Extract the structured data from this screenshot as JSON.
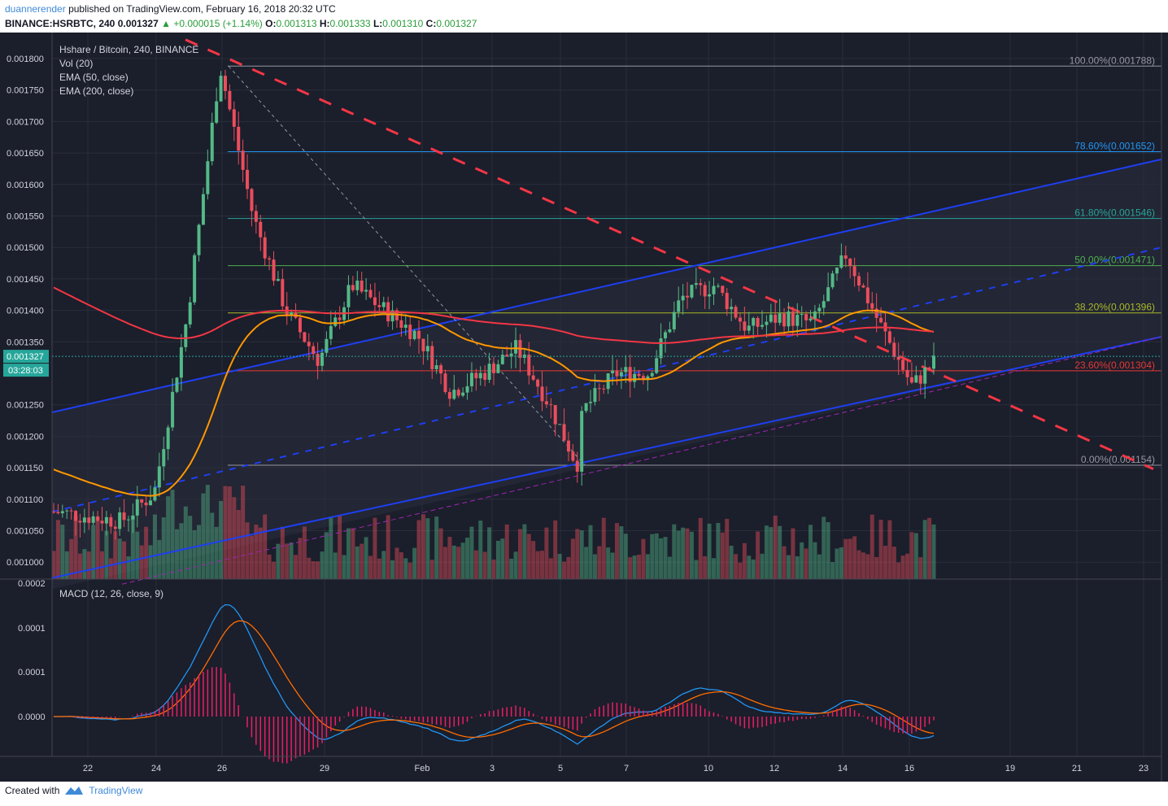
{
  "header": {
    "user": "duannerender",
    "published": "published on TradingView.com, February 16, 2018 20:32 UTC",
    "symbol": "BINANCE:HSRBTC, 240",
    "last": "0.001327",
    "change": "+0.000015 (+1.14%)",
    "o_label": "O:",
    "o": "0.001313",
    "h_label": "H:",
    "h": "0.001333",
    "l_label": "L:",
    "l": "0.001310",
    "c_label": "C:",
    "c": "0.001327"
  },
  "legend": {
    "title": "Hshare / Bitcoin, 240, BINANCE",
    "vol": "Vol (20)",
    "ema50": "EMA (50, close)",
    "ema200": "EMA (200, close)",
    "macd": "MACD (12, 26, close, 9)"
  },
  "price_axis": {
    "ticks": [
      "0.001800",
      "0.001750",
      "0.001700",
      "0.001650",
      "0.001600",
      "0.001550",
      "0.001500",
      "0.001450",
      "0.001400",
      "0.001350",
      "0.001250",
      "0.001200",
      "0.001150",
      "0.001100",
      "0.001050",
      "0.001000"
    ],
    "current_price": "0.001327",
    "countdown": "03:28:03"
  },
  "macd_axis": {
    "ticks": [
      "0.0002",
      "0.0001",
      "0.0001",
      "0.0000"
    ]
  },
  "time_axis": {
    "labels": [
      "22",
      "24",
      "26",
      "29",
      "Feb",
      "3",
      "5",
      "7",
      "10",
      "12",
      "14",
      "16",
      "19",
      "21",
      "23"
    ]
  },
  "fib_levels": [
    {
      "label": "100.00%(0.001788)",
      "price": 0.001788,
      "color": "#9598a1"
    },
    {
      "label": "78.60%(0.001652)",
      "price": 0.001652,
      "color": "#2196f3"
    },
    {
      "label": "61.80%(0.001546)",
      "price": 0.001546,
      "color": "#26a69a"
    },
    {
      "label": "50.00%(0.001471)",
      "price": 0.001471,
      "color": "#4caf50"
    },
    {
      "label": "38.20%(0.001396)",
      "price": 0.001396,
      "color": "#a9b92a"
    },
    {
      "label": "23.60%(0.001304)",
      "price": 0.001304,
      "color": "#e53935"
    },
    {
      "label": "0.00%(0.001154)",
      "price": 0.001154,
      "color": "#9598a1"
    }
  ],
  "colors": {
    "background": "#1b1e2b",
    "grid": "#2a2e3b",
    "up": "#53b987",
    "down": "#eb4d5c",
    "ema50": "#ff9800",
    "ema200": "#f23645",
    "trend": "#1e3ff2",
    "resistance": "#f23645",
    "macd": "#2196f3",
    "signal": "#ff6d00",
    "hist": "#e91e63",
    "axis_text": "#d1d4dc",
    "current": "#26a69a"
  },
  "chart_data": {
    "type": "candlestick",
    "title": "Hshare / Bitcoin, 240, BINANCE",
    "xlabel": "",
    "ylabel": "",
    "x_range": [
      "2018-01-21",
      "2018-01-23 to 2018-02-23 axis"
    ],
    "ylim": [
      0.00098,
      0.00183
    ],
    "key_points": [
      {
        "x": "2018-01-21",
        "close": 0.00108
      },
      {
        "x": "2018-01-23",
        "close": 0.001065
      },
      {
        "x": "2018-01-24",
        "close": 0.00111
      },
      {
        "x": "2018-01-25",
        "close": 0.00139
      },
      {
        "x": "2018-01-26",
        "close": 0.001788
      },
      {
        "x": "2018-01-27",
        "close": 0.00155
      },
      {
        "x": "2018-01-28",
        "close": 0.0014
      },
      {
        "x": "2018-01-29",
        "close": 0.00132
      },
      {
        "x": "2018-01-30",
        "close": 0.00144
      },
      {
        "x": "2018-02-01",
        "close": 0.00136
      },
      {
        "x": "2018-02-02",
        "close": 0.00127
      },
      {
        "x": "2018-02-03",
        "close": 0.0013
      },
      {
        "x": "2018-02-04",
        "close": 0.00134
      },
      {
        "x": "2018-02-05",
        "close": 0.00125
      },
      {
        "x": "2018-02-05 20:00",
        "close": 0.001154
      },
      {
        "x": "2018-02-06",
        "close": 0.00124
      },
      {
        "x": "2018-02-07",
        "close": 0.0013
      },
      {
        "x": "2018-02-08",
        "close": 0.0013
      },
      {
        "x": "2018-02-09",
        "close": 0.00142
      },
      {
        "x": "2018-02-10",
        "close": 0.00144
      },
      {
        "x": "2018-02-11",
        "close": 0.00137
      },
      {
        "x": "2018-02-12",
        "close": 0.00139
      },
      {
        "x": "2018-02-13",
        "close": 0.00138
      },
      {
        "x": "2018-02-14",
        "close": 0.00149
      },
      {
        "x": "2018-02-15",
        "close": 0.00138
      },
      {
        "x": "2018-02-16",
        "close": 0.00128
      },
      {
        "x": "2018-02-16 20:00",
        "close": 0.001327
      }
    ],
    "series": [
      {
        "name": "EMA (50, close)",
        "last": 0.001362
      },
      {
        "name": "EMA (200, close)",
        "last": 0.00137
      }
    ]
  }
}
